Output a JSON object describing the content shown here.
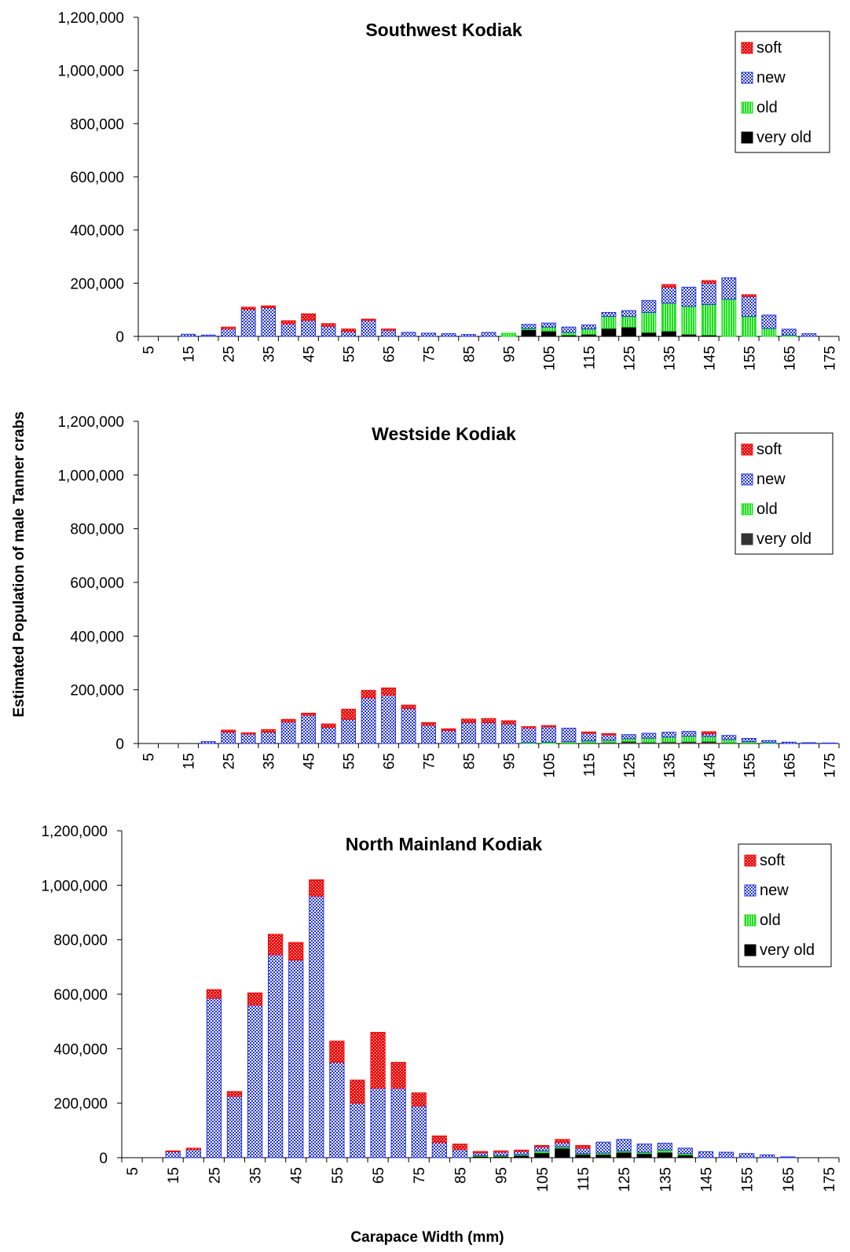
{
  "figure": {
    "ylabel": "Estimated Population of male Tanner crabs",
    "xlabel": "Carapace Width (mm)"
  },
  "chart_data": [
    {
      "type": "bar",
      "stacked": true,
      "title": "Southwest Kodiak",
      "xlabel": "",
      "ylabel": "",
      "ylim": [
        0,
        1200000
      ],
      "yticks": [
        "0",
        "200,000",
        "400,000",
        "600,000",
        "800,000",
        "1,000,000",
        "1,200,000"
      ],
      "xticks": [
        "5",
        "15",
        "25",
        "35",
        "45",
        "55",
        "65",
        "75",
        "85",
        "95",
        "105",
        "115",
        "125",
        "135",
        "145",
        "155",
        "165",
        "175"
      ],
      "x": [
        5,
        10,
        15,
        20,
        25,
        30,
        35,
        40,
        45,
        50,
        55,
        60,
        65,
        70,
        75,
        80,
        85,
        90,
        95,
        100,
        105,
        110,
        115,
        120,
        125,
        130,
        135,
        140,
        145,
        150,
        155,
        160,
        165,
        170,
        175
      ],
      "legend": "top-right",
      "series": [
        {
          "name": "very old",
          "color": "#000000",
          "values": [
            0,
            0,
            0,
            0,
            0,
            0,
            0,
            0,
            0,
            0,
            0,
            0,
            0,
            0,
            0,
            0,
            0,
            0,
            0,
            25000,
            20000,
            5000,
            8000,
            30000,
            35000,
            15000,
            20000,
            8000,
            5000,
            0,
            0,
            0,
            0,
            0,
            0
          ]
        },
        {
          "name": "old",
          "color": "#22dd22",
          "values": [
            0,
            0,
            0,
            0,
            0,
            0,
            0,
            0,
            0,
            0,
            0,
            0,
            0,
            0,
            0,
            0,
            0,
            0,
            12000,
            5000,
            15000,
            10000,
            20000,
            45000,
            40000,
            75000,
            105000,
            105000,
            115000,
            140000,
            75000,
            30000,
            5000,
            0,
            0
          ]
        },
        {
          "name": "new",
          "color": "#2233dd",
          "values": [
            0,
            0,
            8000,
            5000,
            28000,
            102000,
            108000,
            47000,
            60000,
            38000,
            18000,
            60000,
            23000,
            15000,
            12000,
            10000,
            7000,
            15000,
            0,
            15000,
            15000,
            20000,
            15000,
            15000,
            22000,
            45000,
            60000,
            72000,
            80000,
            80000,
            75000,
            50000,
            22000,
            10000,
            0
          ]
        },
        {
          "name": "soft",
          "color": "#ee1111",
          "values": [
            0,
            0,
            0,
            0,
            7000,
            8000,
            7000,
            12000,
            25000,
            10000,
            10000,
            5000,
            5000,
            0,
            0,
            0,
            0,
            0,
            0,
            0,
            0,
            0,
            0,
            0,
            0,
            0,
            10000,
            0,
            10000,
            0,
            7000,
            0,
            0,
            0,
            0
          ]
        }
      ]
    },
    {
      "type": "bar",
      "stacked": true,
      "title": "Westside Kodiak",
      "xlabel": "",
      "ylabel": "",
      "ylim": [
        0,
        1200000
      ],
      "yticks": [
        "0",
        "200,000",
        "400,000",
        "600,000",
        "800,000",
        "1,000,000",
        "1,200,000"
      ],
      "xticks": [
        "5",
        "15",
        "25",
        "35",
        "45",
        "55",
        "65",
        "75",
        "85",
        "95",
        "105",
        "115",
        "125",
        "135",
        "145",
        "155",
        "165",
        "175"
      ],
      "x": [
        5,
        10,
        15,
        20,
        25,
        30,
        35,
        40,
        45,
        50,
        55,
        60,
        65,
        70,
        75,
        80,
        85,
        90,
        95,
        100,
        105,
        110,
        115,
        120,
        125,
        130,
        135,
        140,
        145,
        150,
        155,
        160,
        165,
        170,
        175
      ],
      "legend": "top-right",
      "series": [
        {
          "name": "very old",
          "color": "#333333",
          "values": [
            0,
            0,
            0,
            0,
            0,
            0,
            0,
            0,
            0,
            0,
            0,
            0,
            0,
            0,
            0,
            0,
            0,
            0,
            0,
            0,
            0,
            2000,
            3000,
            4000,
            8000,
            5000,
            6000,
            7000,
            8000,
            3000,
            2000,
            0,
            0,
            0,
            0
          ]
        },
        {
          "name": "old",
          "color": "#22dd22",
          "values": [
            0,
            0,
            0,
            0,
            0,
            0,
            0,
            0,
            0,
            0,
            0,
            0,
            0,
            0,
            0,
            0,
            0,
            0,
            0,
            3000,
            5000,
            5000,
            7000,
            8000,
            10000,
            15000,
            18000,
            20000,
            18000,
            12000,
            5000,
            3000,
            0,
            0,
            0
          ]
        },
        {
          "name": "new",
          "color": "#2233dd",
          "values": [
            0,
            0,
            0,
            7000,
            42000,
            35000,
            42000,
            80000,
            105000,
            60000,
            90000,
            170000,
            180000,
            130000,
            68000,
            48000,
            78000,
            78000,
            73000,
            55000,
            57000,
            50000,
            28000,
            20000,
            15000,
            18000,
            18000,
            18000,
            10000,
            15000,
            12000,
            8000,
            5000,
            3000,
            2000
          ]
        },
        {
          "name": "soft",
          "color": "#ee1111",
          "values": [
            0,
            0,
            0,
            0,
            8000,
            5000,
            10000,
            10000,
            8000,
            13000,
            38000,
            28000,
            27000,
            13000,
            10000,
            7000,
            13000,
            15000,
            12000,
            5000,
            5000,
            0,
            5000,
            5000,
            0,
            0,
            0,
            0,
            8000,
            0,
            0,
            0,
            0,
            0,
            0
          ]
        }
      ]
    },
    {
      "type": "bar",
      "stacked": true,
      "title": "North Mainland Kodiak",
      "xlabel": "Carapace Width (mm)",
      "ylabel": "",
      "ylim": [
        0,
        1200000
      ],
      "yticks": [
        "0",
        "200,000",
        "400,000",
        "600,000",
        "800,000",
        "1,000,000",
        "1,200,000"
      ],
      "xticks": [
        "5",
        "15",
        "25",
        "35",
        "45",
        "55",
        "65",
        "75",
        "85",
        "95",
        "105",
        "115",
        "125",
        "135",
        "145",
        "155",
        "165",
        "175"
      ],
      "x": [
        5,
        10,
        15,
        20,
        25,
        30,
        35,
        40,
        45,
        50,
        55,
        60,
        65,
        70,
        75,
        80,
        85,
        90,
        95,
        100,
        105,
        110,
        115,
        120,
        125,
        130,
        135,
        140,
        145,
        150,
        155,
        160,
        165,
        170,
        175
      ],
      "legend": "top-right",
      "series": [
        {
          "name": "very old",
          "color": "#000000",
          "values": [
            0,
            0,
            0,
            0,
            0,
            0,
            0,
            0,
            0,
            0,
            0,
            0,
            0,
            0,
            0,
            0,
            0,
            5000,
            5000,
            8000,
            18000,
            35000,
            12000,
            12000,
            20000,
            15000,
            20000,
            10000,
            0,
            0,
            0,
            0,
            0,
            0,
            0
          ]
        },
        {
          "name": "old",
          "color": "#22dd22",
          "values": [
            0,
            0,
            0,
            0,
            0,
            0,
            0,
            0,
            0,
            0,
            0,
            0,
            0,
            0,
            0,
            0,
            0,
            3000,
            3000,
            3000,
            7000,
            5000,
            3000,
            5000,
            5000,
            5000,
            8000,
            5000,
            0,
            0,
            0,
            0,
            0,
            0,
            0
          ]
        },
        {
          "name": "new",
          "color": "#2233dd",
          "values": [
            0,
            0,
            22000,
            30000,
            585000,
            225000,
            560000,
            745000,
            725000,
            960000,
            350000,
            200000,
            255000,
            255000,
            190000,
            55000,
            30000,
            10000,
            12000,
            12000,
            15000,
            15000,
            20000,
            40000,
            42000,
            30000,
            25000,
            20000,
            22000,
            20000,
            15000,
            10000,
            3000,
            0,
            0
          ]
        },
        {
          "name": "soft",
          "color": "#ee1111",
          "values": [
            0,
            0,
            3000,
            5000,
            32000,
            18000,
            45000,
            75000,
            65000,
            60000,
            78000,
            85000,
            205000,
            95000,
            48000,
            25000,
            20000,
            5000,
            5000,
            5000,
            5000,
            12000,
            10000,
            0,
            0,
            0,
            0,
            0,
            0,
            0,
            0,
            0,
            0,
            0,
            0
          ]
        }
      ]
    }
  ]
}
